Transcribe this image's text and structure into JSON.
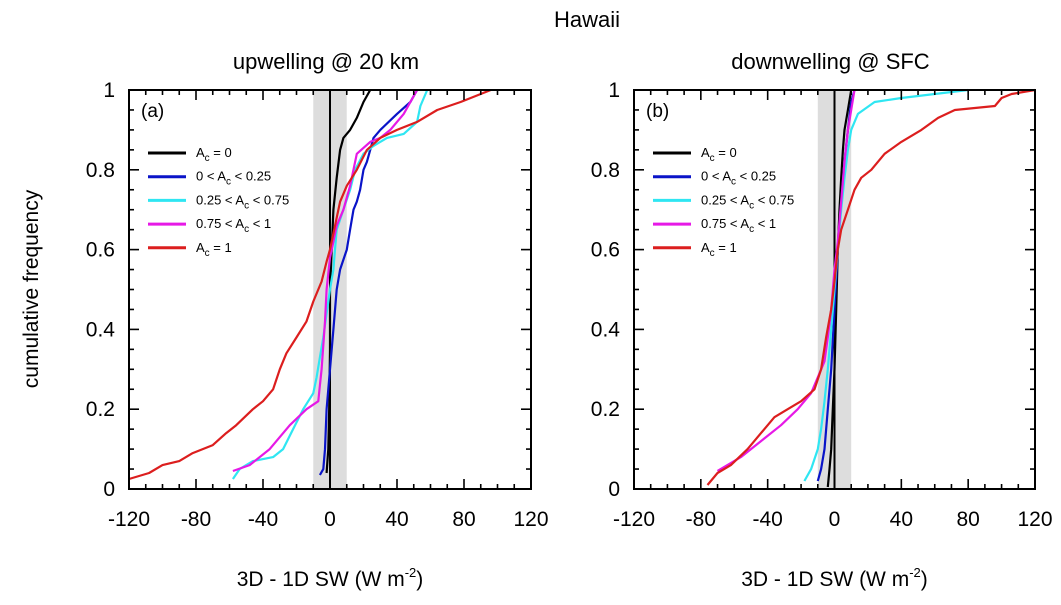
{
  "figure_title": "Hawaii",
  "colors": {
    "black": "#000000",
    "blue": "#0a14c8",
    "cyan": "#2fe6f2",
    "magenta": "#e619e6",
    "red": "#dc1e1e",
    "shade": "#dddddd"
  },
  "chart_data": [
    {
      "type": "line",
      "panel_label": "(a)",
      "title": "upwelling @ 20 km",
      "xlabel": "3D - 1D SW (W m",
      "xlabel_sup": "-2",
      "xlabel_suffix": ")",
      "ylabel": "cumulative frequency",
      "xlim": [
        -120,
        120
      ],
      "ylim": [
        0,
        1
      ],
      "xticks": [
        "-120",
        "-80",
        "-40",
        "0",
        "40",
        "80",
        "120"
      ],
      "yticks": [
        "0",
        "0.2",
        "0.4",
        "0.6",
        "0.8",
        "1"
      ],
      "shaded_band": [
        -10,
        10
      ],
      "legend": [
        {
          "pre": "A",
          "sub": "c",
          "post": " = 0",
          "color": "black"
        },
        {
          "pre": "0 < A",
          "sub": "c",
          "post": " < 0.25",
          "color": "blue"
        },
        {
          "pre": "0.25 < A",
          "sub": "c",
          "post": " < 0.75",
          "color": "cyan"
        },
        {
          "pre": "0.75 < A",
          "sub": "c",
          "post": " < 1",
          "color": "magenta"
        },
        {
          "pre": "A",
          "sub": "c",
          "post": " = 1",
          "color": "red"
        }
      ],
      "series": [
        {
          "color": "black",
          "points": [
            [
              -2,
              0.04
            ],
            [
              -1,
              0.1
            ],
            [
              -0.5,
              0.2
            ],
            [
              0,
              0.35
            ],
            [
              0,
              0.5
            ],
            [
              1,
              0.6
            ],
            [
              2,
              0.7
            ],
            [
              4,
              0.78
            ],
            [
              6,
              0.85
            ],
            [
              8,
              0.88
            ],
            [
              12,
              0.9
            ],
            [
              16,
              0.93
            ],
            [
              20,
              0.97
            ],
            [
              24,
              1.0
            ]
          ]
        },
        {
          "color": "blue",
          "points": [
            [
              -6,
              0.035
            ],
            [
              -4,
              0.05
            ],
            [
              -3,
              0.1
            ],
            [
              -2,
              0.2
            ],
            [
              0,
              0.3
            ],
            [
              2,
              0.4
            ],
            [
              4,
              0.5
            ],
            [
              6,
              0.55
            ],
            [
              10,
              0.6
            ],
            [
              12,
              0.65
            ],
            [
              14,
              0.7
            ],
            [
              16,
              0.72
            ],
            [
              18,
              0.75
            ],
            [
              20,
              0.8
            ],
            [
              22,
              0.82
            ],
            [
              24,
              0.85
            ],
            [
              26,
              0.88
            ],
            [
              30,
              0.9
            ],
            [
              40,
              0.94
            ],
            [
              48,
              0.97
            ],
            [
              52,
              1.0
            ]
          ]
        },
        {
          "color": "cyan",
          "points": [
            [
              -58,
              0.025
            ],
            [
              -54,
              0.05
            ],
            [
              -46,
              0.07
            ],
            [
              -34,
              0.08
            ],
            [
              -28,
              0.1
            ],
            [
              -22,
              0.15
            ],
            [
              -16,
              0.2
            ],
            [
              -10,
              0.24
            ],
            [
              -8,
              0.28
            ],
            [
              -6,
              0.33
            ],
            [
              -4,
              0.38
            ],
            [
              -2,
              0.44
            ],
            [
              0,
              0.5
            ],
            [
              2,
              0.55
            ],
            [
              3,
              0.6
            ],
            [
              4,
              0.65
            ],
            [
              8,
              0.7
            ],
            [
              12,
              0.75
            ],
            [
              15,
              0.8
            ],
            [
              20,
              0.84
            ],
            [
              26,
              0.86
            ],
            [
              34,
              0.88
            ],
            [
              44,
              0.89
            ],
            [
              52,
              0.92
            ],
            [
              54,
              0.96
            ],
            [
              58,
              1.0
            ]
          ]
        },
        {
          "color": "magenta",
          "points": [
            [
              -58,
              0.045
            ],
            [
              -48,
              0.06
            ],
            [
              -36,
              0.1
            ],
            [
              -30,
              0.13
            ],
            [
              -24,
              0.16
            ],
            [
              -14,
              0.2
            ],
            [
              -7,
              0.22
            ],
            [
              -6,
              0.26
            ],
            [
              -5,
              0.3
            ],
            [
              -4,
              0.36
            ],
            [
              -3,
              0.42
            ],
            [
              -2,
              0.5
            ],
            [
              0,
              0.58
            ],
            [
              2,
              0.62
            ],
            [
              4,
              0.66
            ],
            [
              8,
              0.7
            ],
            [
              12,
              0.76
            ],
            [
              16,
              0.84
            ],
            [
              24,
              0.87
            ],
            [
              30,
              0.88
            ],
            [
              36,
              0.9
            ],
            [
              44,
              0.94
            ],
            [
              52,
              1.0
            ]
          ]
        },
        {
          "color": "red",
          "points": [
            [
              -120,
              0.025
            ],
            [
              -108,
              0.04
            ],
            [
              -100,
              0.06
            ],
            [
              -90,
              0.07
            ],
            [
              -82,
              0.09
            ],
            [
              -70,
              0.11
            ],
            [
              -62,
              0.14
            ],
            [
              -56,
              0.16
            ],
            [
              -46,
              0.2
            ],
            [
              -40,
              0.22
            ],
            [
              -34,
              0.25
            ],
            [
              -30,
              0.3
            ],
            [
              -26,
              0.34
            ],
            [
              -20,
              0.38
            ],
            [
              -14,
              0.42
            ],
            [
              -10,
              0.47
            ],
            [
              -5,
              0.52
            ],
            [
              -2,
              0.57
            ],
            [
              0,
              0.6
            ],
            [
              2,
              0.64
            ],
            [
              4,
              0.68
            ],
            [
              6,
              0.72
            ],
            [
              10,
              0.76
            ],
            [
              16,
              0.8
            ],
            [
              22,
              0.85
            ],
            [
              30,
              0.88
            ],
            [
              40,
              0.9
            ],
            [
              52,
              0.92
            ],
            [
              64,
              0.95
            ],
            [
              78,
              0.97
            ],
            [
              96,
              1.0
            ]
          ]
        }
      ]
    },
    {
      "type": "line",
      "panel_label": "(b)",
      "title": "downwelling @ SFC",
      "xlabel": "3D - 1D SW (W m",
      "xlabel_sup": "-2",
      "xlabel_suffix": ")",
      "ylabel": "",
      "xlim": [
        -120,
        120
      ],
      "ylim": [
        0,
        1
      ],
      "xticks": [
        "-120",
        "-80",
        "-40",
        "0",
        "40",
        "80",
        "120"
      ],
      "yticks": [
        "0",
        "0.2",
        "0.4",
        "0.6",
        "0.8",
        "1"
      ],
      "shaded_band": [
        -10,
        10
      ],
      "legend": [
        {
          "pre": "A",
          "sub": "c",
          "post": " = 0",
          "color": "black"
        },
        {
          "pre": "0 < A",
          "sub": "c",
          "post": " < 0.25",
          "color": "blue"
        },
        {
          "pre": "0.25 < A",
          "sub": "c",
          "post": " < 0.75",
          "color": "cyan"
        },
        {
          "pre": "0.75 < A",
          "sub": "c",
          "post": " < 1",
          "color": "magenta"
        },
        {
          "pre": "A",
          "sub": "c",
          "post": " = 1",
          "color": "red"
        }
      ],
      "series": [
        {
          "color": "black",
          "points": [
            [
              -4,
              0.005
            ],
            [
              -3,
              0.05
            ],
            [
              -2,
              0.1
            ],
            [
              -1,
              0.2
            ],
            [
              0,
              0.3
            ],
            [
              1,
              0.45
            ],
            [
              2,
              0.6
            ],
            [
              3,
              0.7
            ],
            [
              4,
              0.78
            ],
            [
              5,
              0.85
            ],
            [
              6,
              0.9
            ],
            [
              8,
              0.95
            ],
            [
              10,
              1.0
            ]
          ]
        },
        {
          "color": "blue",
          "points": [
            [
              -10,
              0.02
            ],
            [
              -8,
              0.05
            ],
            [
              -6,
              0.1
            ],
            [
              -4,
              0.2
            ],
            [
              -2,
              0.3
            ],
            [
              0,
              0.45
            ],
            [
              2,
              0.6
            ],
            [
              4,
              0.72
            ],
            [
              6,
              0.82
            ],
            [
              8,
              0.9
            ],
            [
              10,
              0.97
            ],
            [
              12,
              1.0
            ]
          ]
        },
        {
          "color": "cyan",
          "points": [
            [
              -18,
              0.02
            ],
            [
              -14,
              0.05
            ],
            [
              -10,
              0.1
            ],
            [
              -8,
              0.15
            ],
            [
              -6,
              0.22
            ],
            [
              -4,
              0.3
            ],
            [
              -2,
              0.4
            ],
            [
              0,
              0.5
            ],
            [
              2,
              0.6
            ],
            [
              4,
              0.7
            ],
            [
              6,
              0.78
            ],
            [
              8,
              0.85
            ],
            [
              10,
              0.9
            ],
            [
              14,
              0.94
            ],
            [
              24,
              0.97
            ],
            [
              40,
              0.98
            ],
            [
              60,
              0.99
            ],
            [
              80,
              1.0
            ]
          ]
        },
        {
          "color": "magenta",
          "points": [
            [
              -70,
              0.045
            ],
            [
              -56,
              0.08
            ],
            [
              -44,
              0.12
            ],
            [
              -32,
              0.16
            ],
            [
              -22,
              0.2
            ],
            [
              -14,
              0.24
            ],
            [
              -10,
              0.28
            ],
            [
              -6,
              0.32
            ],
            [
              -4,
              0.38
            ],
            [
              -2,
              0.45
            ],
            [
              0,
              0.55
            ],
            [
              2,
              0.62
            ],
            [
              4,
              0.72
            ],
            [
              6,
              0.82
            ],
            [
              8,
              0.9
            ],
            [
              10,
              0.95
            ],
            [
              12,
              1.0
            ]
          ]
        },
        {
          "color": "red",
          "points": [
            [
              -76,
              0.01
            ],
            [
              -70,
              0.04
            ],
            [
              -62,
              0.06
            ],
            [
              -52,
              0.1
            ],
            [
              -44,
              0.14
            ],
            [
              -36,
              0.18
            ],
            [
              -28,
              0.2
            ],
            [
              -20,
              0.22
            ],
            [
              -12,
              0.25
            ],
            [
              -8,
              0.3
            ],
            [
              -5,
              0.38
            ],
            [
              -2,
              0.45
            ],
            [
              0,
              0.52
            ],
            [
              2,
              0.6
            ],
            [
              4,
              0.65
            ],
            [
              8,
              0.7
            ],
            [
              12,
              0.75
            ],
            [
              16,
              0.78
            ],
            [
              22,
              0.8
            ],
            [
              30,
              0.84
            ],
            [
              40,
              0.87
            ],
            [
              52,
              0.9
            ],
            [
              62,
              0.93
            ],
            [
              72,
              0.95
            ],
            [
              96,
              0.96
            ],
            [
              100,
              0.98
            ],
            [
              106,
              0.99
            ],
            [
              120,
              1.0
            ]
          ]
        }
      ]
    }
  ]
}
